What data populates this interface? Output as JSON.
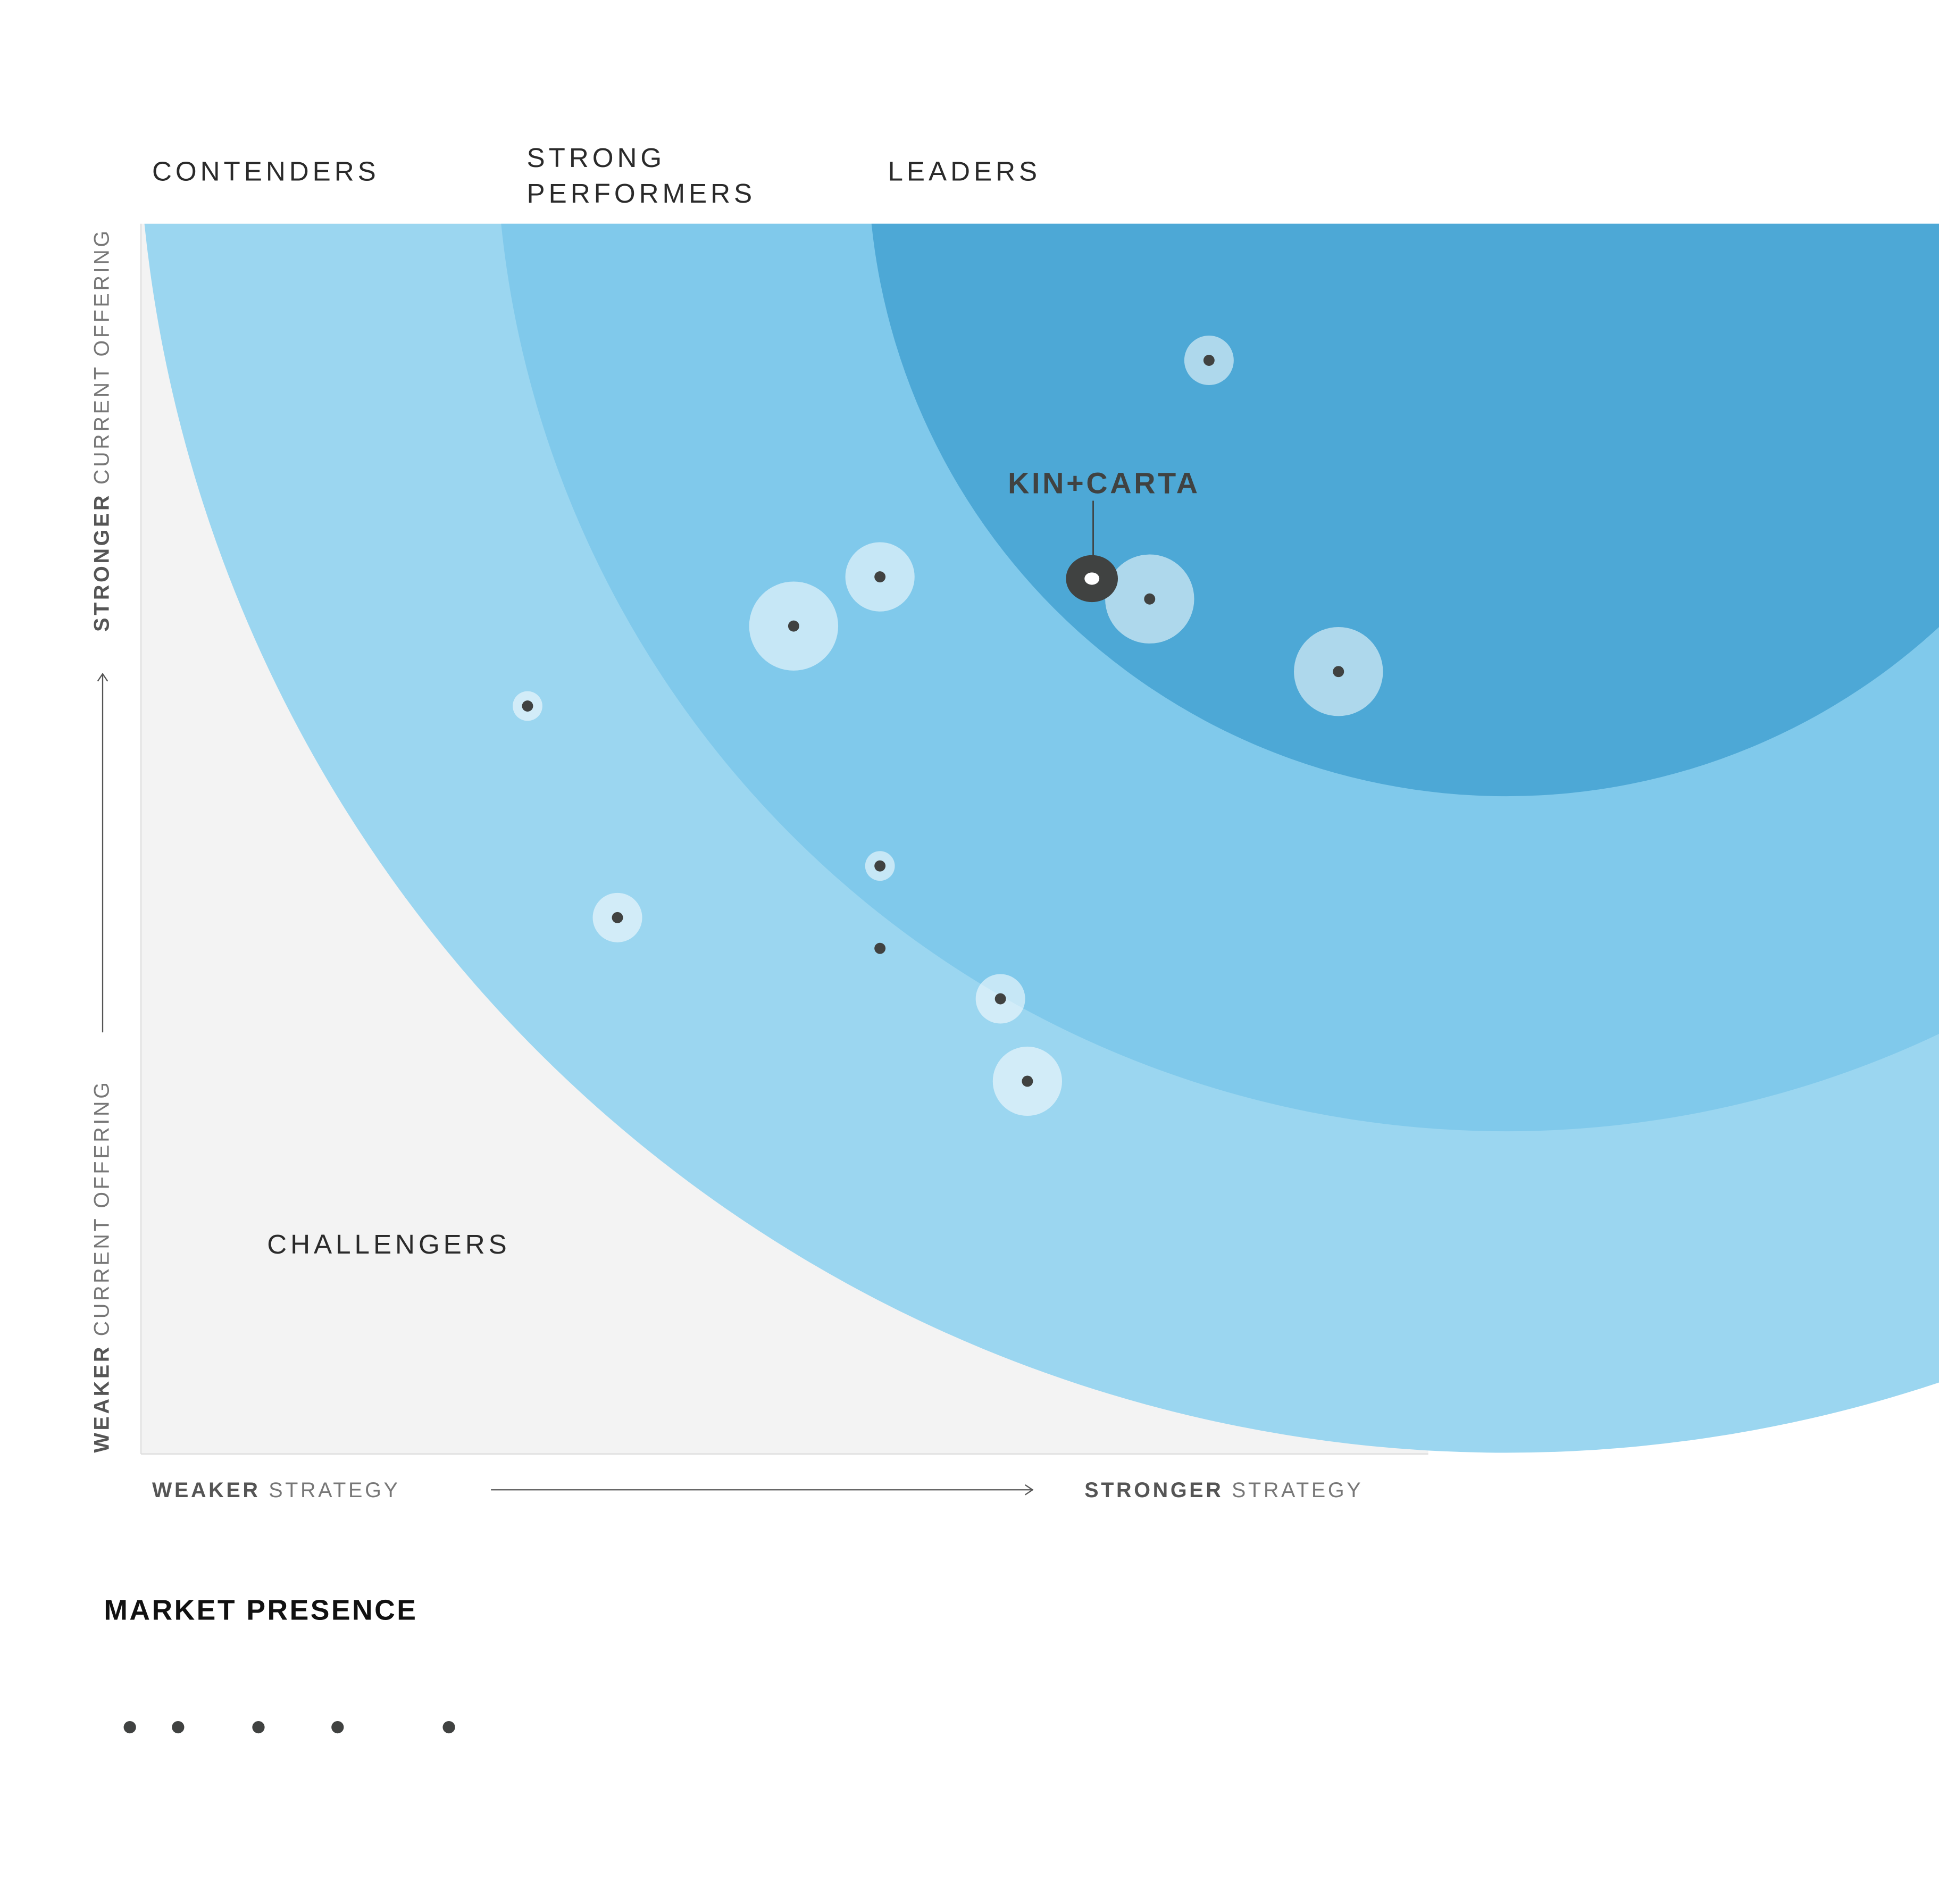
{
  "chart_data": {
    "type": "scatter",
    "title": "",
    "categories_labels": {
      "contenders": "CONTENDERS",
      "strong_line1": "STRONG",
      "strong_line2": "PERFORMERS",
      "leaders": "LEADERS",
      "challengers": "CHALLENGERS"
    },
    "x_axis": {
      "weak_bold": "WEAKER",
      "weak_rest": " STRATEGY",
      "strong_bold": "STRONGER",
      "strong_rest": " STRATEGY",
      "range": [
        0,
        100
      ]
    },
    "y_axis": {
      "weak_bold": "WEAKER",
      "weak_rest": " CURRENT OFFERING",
      "strong_bold": "STRONGER",
      "strong_rest": " CURRENT OFFERING",
      "range": [
        0,
        100
      ]
    },
    "legend": {
      "title": "MARKET PRESENCE",
      "levels": [
        0,
        1,
        2,
        3,
        4
      ]
    },
    "highlight": {
      "label": "KIN+CARTA",
      "strategy": 52.9,
      "offering": 71.2
    },
    "points": [
      {
        "strategy": 59.4,
        "offering": 88.9,
        "presence": 2
      },
      {
        "strategy": 41.1,
        "offering": 71.3,
        "presence": 3
      },
      {
        "strategy": 36.3,
        "offering": 67.3,
        "presence": 4
      },
      {
        "strategy": 56.1,
        "offering": 69.5,
        "presence": 4
      },
      {
        "strategy": 66.6,
        "offering": 63.6,
        "presence": 4
      },
      {
        "strategy": 21.5,
        "offering": 60.8,
        "presence": 1
      },
      {
        "strategy": 41.1,
        "offering": 47.8,
        "presence": 1
      },
      {
        "strategy": 26.5,
        "offering": 43.6,
        "presence": 2
      },
      {
        "strategy": 41.1,
        "offering": 41.1,
        "presence": 0
      },
      {
        "strategy": 47.8,
        "offering": 37.0,
        "presence": 2
      },
      {
        "strategy": 49.3,
        "offering": 30.3,
        "presence": 3
      }
    ],
    "colors": {
      "challengers": "#f3f3f3",
      "contenders": "#9bd6f0",
      "strong": "#80c9eb",
      "leaders": "#4da8d6",
      "dot": "#404241",
      "halo": "#ffffff"
    }
  }
}
